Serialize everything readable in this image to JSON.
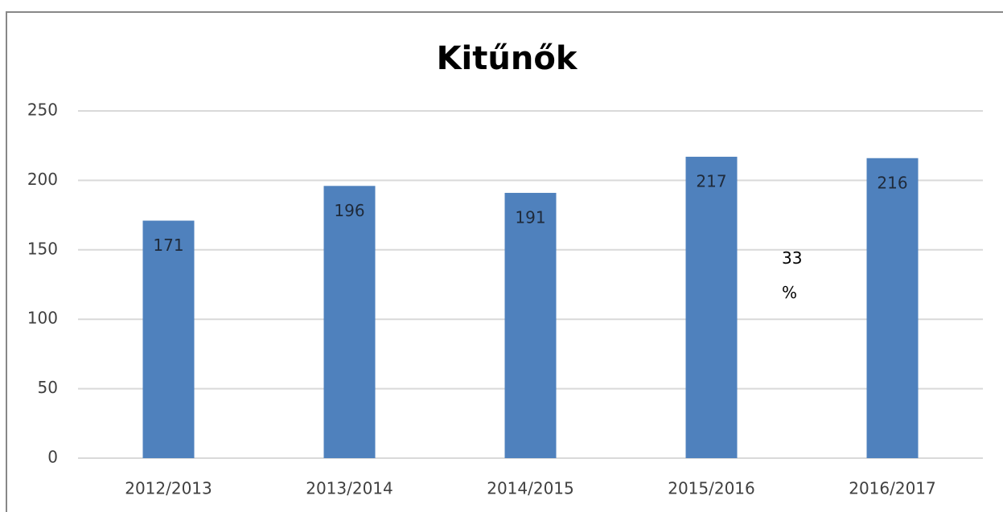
{
  "chart_data": {
    "type": "bar",
    "title": "Kitűnők",
    "categories": [
      "2012/2013",
      "2013/2014",
      "2014/2015",
      "2015/2016",
      "2016/2017"
    ],
    "values": [
      171,
      196,
      191,
      217,
      216
    ],
    "color": "#4f81bd",
    "ylim": [
      0,
      250
    ],
    "yticks": [
      0,
      50,
      100,
      150,
      200,
      250
    ],
    "grid": true,
    "annotation": "33 %"
  }
}
